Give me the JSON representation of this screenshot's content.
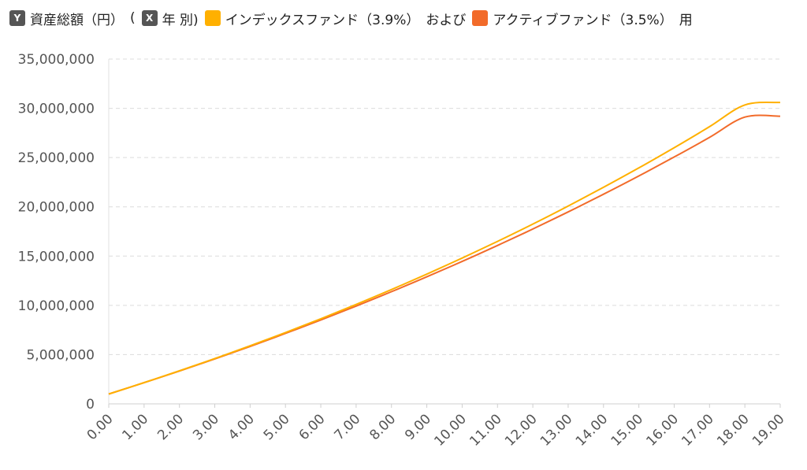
{
  "legend": {
    "y_badge": "Y",
    "y_label": "資産総額（円）",
    "open_paren": "(",
    "x_badge": "X",
    "x_label": "年 別)",
    "series_0_label": "インデックスファンド（3.9%）",
    "joiner": "および",
    "series_1_label": "アクティブファンド（3.5%）",
    "suffix": "用"
  },
  "chart_data": {
    "type": "line",
    "title": "",
    "xlabel": "年 別",
    "ylabel": "資産総額（円）",
    "x": [
      0,
      1,
      2,
      3,
      4,
      5,
      6,
      7,
      8,
      9,
      10,
      11,
      12,
      13,
      14,
      15,
      16,
      17,
      18,
      19
    ],
    "x_tick_labels": [
      "0.00",
      "1.00",
      "2.00",
      "3.00",
      "4.00",
      "5.00",
      "6.00",
      "7.00",
      "8.00",
      "9.00",
      "10.00",
      "11.00",
      "12.00",
      "13.00",
      "14.00",
      "15.00",
      "16.00",
      "17.00",
      "18.00",
      "19.00"
    ],
    "ylim": [
      0,
      35000000
    ],
    "y_ticks": [
      0,
      5000000,
      10000000,
      15000000,
      20000000,
      25000000,
      30000000,
      35000000
    ],
    "y_tick_labels": [
      "0",
      "5,000,000",
      "10,000,000",
      "15,000,000",
      "20,000,000",
      "25,000,000",
      "30,000,000",
      "35,000,000"
    ],
    "grid": true,
    "legend_position": "top-left",
    "series": [
      {
        "name": "インデックスファンド（3.9%）",
        "color": "#FFB000",
        "values": [
          1000000,
          2155000,
          3355000,
          4602000,
          5897000,
          7243000,
          8641000,
          10094000,
          11603000,
          13171000,
          14801000,
          16494000,
          18253000,
          20080000,
          21979000,
          23952000,
          26002000,
          28132000,
          30345000,
          30600000
        ]
      },
      {
        "name": "アクティブファンド（3.5%）",
        "color": "#F26B2A",
        "values": [
          1000000,
          2147000,
          3334000,
          4563000,
          5835000,
          7151000,
          8514000,
          9924000,
          11384000,
          12894000,
          14458000,
          16076000,
          17751000,
          19485000,
          21279000,
          23136000,
          25058000,
          27048000,
          29107000,
          29200000
        ]
      }
    ]
  }
}
